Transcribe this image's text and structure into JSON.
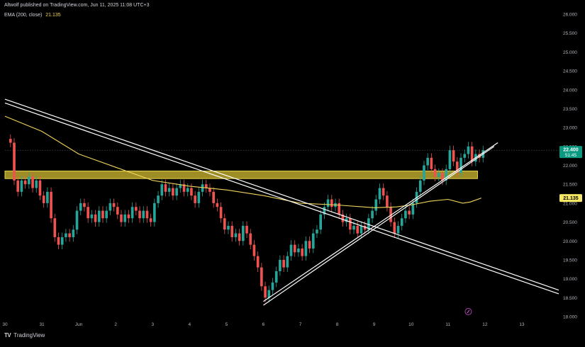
{
  "header": {
    "attribution": "Altwolf published on TradingView.com, Jun 11, 2025 11:08 UTC+3"
  },
  "indicator": {
    "name": "EMA (200, close)",
    "value": "21.135"
  },
  "footer": {
    "logo_mark": "TV",
    "brand": "TradingView"
  },
  "colors": {
    "background": "#000000",
    "up": "#26a69a",
    "down": "#ef5350",
    "ema": "#f0d35a",
    "zone": "#b8a62a",
    "lines": "#ffffff",
    "price_tag": "#089981",
    "ema_tag": "#f5e663"
  },
  "price_tags": {
    "last_price": "22.400",
    "countdown": "51:45",
    "ema": "21.135"
  },
  "chart_data": {
    "type": "candlestick",
    "ylim": [
      18.0,
      26.0
    ],
    "y_ticks": [
      "26.000",
      "25.500",
      "25.000",
      "24.500",
      "24.000",
      "23.500",
      "23.000",
      "22.500",
      "22.000",
      "21.500",
      "21.000",
      "20.500",
      "20.000",
      "19.500",
      "19.000",
      "18.500",
      "18.000"
    ],
    "x_ticks": [
      "30",
      "31",
      "Jun",
      "2",
      "3",
      "4",
      "5",
      "6",
      "7",
      "8",
      "9",
      "10",
      "11",
      "12",
      "13"
    ],
    "xlim": [
      0,
      15
    ],
    "last_price": 22.4,
    "ema_200": 21.135,
    "resistance_zone": {
      "x_range": [
        0,
        12.8
      ],
      "y_range": [
        21.65,
        21.85
      ]
    },
    "close_path": [
      [
        0.0,
        22.7
      ],
      [
        0.15,
        22.6
      ],
      [
        0.25,
        21.6
      ],
      [
        0.35,
        21.3
      ],
      [
        0.45,
        21.6
      ],
      [
        0.55,
        21.5
      ],
      [
        0.65,
        21.7
      ],
      [
        0.75,
        21.4
      ],
      [
        0.85,
        21.6
      ],
      [
        0.95,
        21.2
      ],
      [
        1.05,
        21.0
      ],
      [
        1.15,
        21.3
      ],
      [
        1.25,
        20.6
      ],
      [
        1.35,
        20.1
      ],
      [
        1.45,
        19.9
      ],
      [
        1.55,
        20.1
      ],
      [
        1.65,
        20.2
      ],
      [
        1.75,
        20.1
      ],
      [
        1.85,
        20.3
      ],
      [
        1.95,
        20.8
      ],
      [
        2.05,
        21.0
      ],
      [
        2.15,
        20.9
      ],
      [
        2.25,
        20.6
      ],
      [
        2.35,
        20.7
      ],
      [
        2.45,
        20.5
      ],
      [
        2.55,
        20.8
      ],
      [
        2.65,
        20.6
      ],
      [
        2.75,
        20.8
      ],
      [
        2.85,
        21.0
      ],
      [
        2.95,
        20.9
      ],
      [
        3.05,
        20.7
      ],
      [
        3.15,
        20.5
      ],
      [
        3.25,
        20.7
      ],
      [
        3.35,
        20.6
      ],
      [
        3.45,
        20.9
      ],
      [
        3.55,
        20.8
      ],
      [
        3.65,
        20.6
      ],
      [
        3.75,
        20.8
      ],
      [
        3.85,
        20.6
      ],
      [
        3.95,
        20.5
      ],
      [
        4.05,
        21.0
      ],
      [
        4.15,
        21.2
      ],
      [
        4.25,
        21.5
      ],
      [
        4.35,
        21.3
      ],
      [
        4.45,
        21.4
      ],
      [
        4.55,
        21.2
      ],
      [
        4.65,
        21.4
      ],
      [
        4.75,
        21.5
      ],
      [
        4.85,
        21.3
      ],
      [
        4.95,
        21.4
      ],
      [
        5.05,
        21.2
      ],
      [
        5.15,
        21.0
      ],
      [
        5.25,
        21.3
      ],
      [
        5.35,
        21.5
      ],
      [
        5.45,
        21.4
      ],
      [
        5.55,
        21.3
      ],
      [
        5.65,
        21.0
      ],
      [
        5.75,
        20.9
      ],
      [
        5.85,
        20.6
      ],
      [
        5.95,
        20.3
      ],
      [
        6.05,
        20.4
      ],
      [
        6.15,
        20.1
      ],
      [
        6.25,
        20.2
      ],
      [
        6.35,
        20.0
      ],
      [
        6.45,
        20.4
      ],
      [
        6.55,
        20.2
      ],
      [
        6.65,
        19.9
      ],
      [
        6.75,
        19.6
      ],
      [
        6.85,
        19.3
      ],
      [
        6.95,
        18.8
      ],
      [
        7.05,
        18.5
      ],
      [
        7.15,
        18.7
      ],
      [
        7.25,
        18.9
      ],
      [
        7.35,
        19.2
      ],
      [
        7.45,
        19.5
      ],
      [
        7.55,
        19.3
      ],
      [
        7.65,
        19.6
      ],
      [
        7.75,
        19.9
      ],
      [
        7.85,
        19.7
      ],
      [
        7.95,
        19.8
      ],
      [
        8.05,
        19.6
      ],
      [
        8.15,
        20.0
      ],
      [
        8.25,
        19.8
      ],
      [
        8.35,
        20.2
      ],
      [
        8.45,
        20.3
      ],
      [
        8.55,
        20.7
      ],
      [
        8.65,
        20.9
      ],
      [
        8.75,
        21.1
      ],
      [
        8.85,
        20.9
      ],
      [
        8.95,
        21.0
      ],
      [
        9.05,
        20.7
      ],
      [
        9.15,
        20.5
      ],
      [
        9.25,
        20.6
      ],
      [
        9.35,
        20.3
      ],
      [
        9.45,
        20.4
      ],
      [
        9.55,
        20.2
      ],
      [
        9.65,
        20.4
      ],
      [
        9.75,
        20.3
      ],
      [
        9.85,
        20.6
      ],
      [
        9.95,
        20.8
      ],
      [
        10.05,
        21.1
      ],
      [
        10.15,
        21.4
      ],
      [
        10.25,
        21.2
      ],
      [
        10.35,
        20.9
      ],
      [
        10.45,
        20.5
      ],
      [
        10.55,
        20.2
      ],
      [
        10.65,
        20.4
      ],
      [
        10.75,
        20.6
      ],
      [
        10.85,
        20.8
      ],
      [
        10.95,
        20.7
      ],
      [
        11.05,
        21.0
      ],
      [
        11.15,
        21.3
      ],
      [
        11.25,
        21.6
      ],
      [
        11.35,
        22.0
      ],
      [
        11.45,
        22.2
      ],
      [
        11.55,
        21.9
      ],
      [
        11.65,
        21.7
      ],
      [
        11.75,
        21.8
      ],
      [
        11.85,
        21.6
      ],
      [
        11.95,
        21.9
      ],
      [
        12.05,
        22.4
      ],
      [
        12.15,
        22.1
      ],
      [
        12.25,
        21.8
      ],
      [
        12.35,
        22.2
      ],
      [
        12.45,
        22.3
      ],
      [
        12.55,
        22.5
      ],
      [
        12.65,
        22.1
      ],
      [
        12.75,
        22.3
      ],
      [
        12.85,
        22.2
      ],
      [
        12.95,
        22.4
      ]
    ],
    "ema_path": [
      [
        0.0,
        23.3
      ],
      [
        1.0,
        22.9
      ],
      [
        2.0,
        22.3
      ],
      [
        3.0,
        21.95
      ],
      [
        4.0,
        21.6
      ],
      [
        5.0,
        21.45
      ],
      [
        6.0,
        21.35
      ],
      [
        7.0,
        21.2
      ],
      [
        8.0,
        21.0
      ],
      [
        9.0,
        20.95
      ],
      [
        10.0,
        20.88
      ],
      [
        10.6,
        20.9
      ],
      [
        11.0,
        20.95
      ],
      [
        11.5,
        21.05
      ],
      [
        12.0,
        21.1
      ],
      [
        12.4,
        21.0
      ],
      [
        12.6,
        21.03
      ],
      [
        12.9,
        21.135
      ]
    ],
    "trend_lines": [
      {
        "name": "",
        "points": [
          [
            0.0,
            23.75
          ],
          [
            15.0,
            18.7
          ]
        ]
      },
      {
        "name": "",
        "points": [
          [
            0.0,
            23.65
          ],
          [
            15.0,
            18.6
          ]
        ]
      },
      {
        "name": "",
        "points": [
          [
            7.0,
            18.4
          ],
          [
            13.35,
            22.6
          ]
        ]
      },
      {
        "name": "",
        "points": [
          [
            7.0,
            18.3
          ],
          [
            13.25,
            22.5
          ]
        ]
      }
    ]
  }
}
